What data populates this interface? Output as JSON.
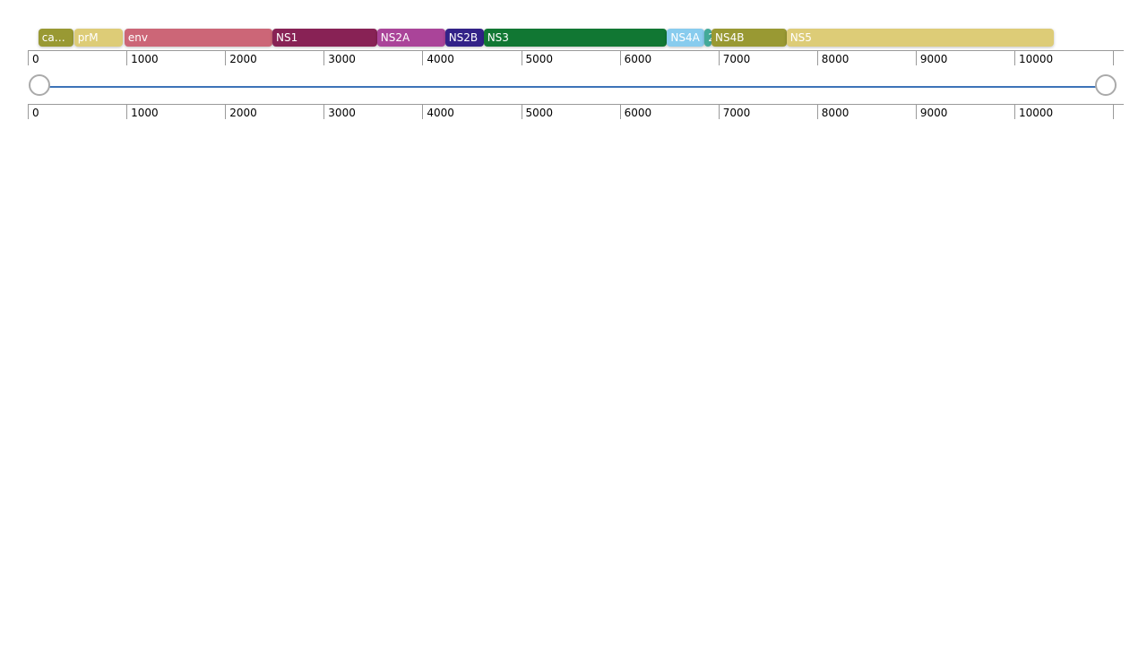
{
  "genome": {
    "length": 11000,
    "features": [
      {
        "id": "capsid",
        "label": "ca…",
        "start": 107,
        "end": 460,
        "color": "#999933",
        "text_color": "#ffffff"
      },
      {
        "id": "prM",
        "label": "prM",
        "start": 470,
        "end": 960,
        "color": "#DDCC77",
        "text_color": "#ffffff"
      },
      {
        "id": "env",
        "label": "env",
        "start": 980,
        "end": 2480,
        "color": "#CC6677",
        "text_color": "#ffffff"
      },
      {
        "id": "NS1",
        "label": "NS1",
        "start": 2480,
        "end": 3540,
        "color": "#882255",
        "text_color": "#ffffff"
      },
      {
        "id": "NS2A",
        "label": "NS2A",
        "start": 3540,
        "end": 4230,
        "color": "#AA4499",
        "text_color": "#ffffff"
      },
      {
        "id": "NS2B",
        "label": "NS2B",
        "start": 4230,
        "end": 4620,
        "color": "#332288",
        "text_color": "#ffffff"
      },
      {
        "id": "NS3",
        "label": "NS3",
        "start": 4620,
        "end": 6480,
        "color": "#117733",
        "text_color": "#ffffff"
      },
      {
        "id": "NS4A",
        "label": "NS4A",
        "start": 6480,
        "end": 6860,
        "color": "#88CCEE",
        "text_color": "#ffffff"
      },
      {
        "id": "2K",
        "label": "2",
        "start": 6860,
        "end": 6930,
        "color": "#44AA99",
        "text_color": "#ffffff"
      },
      {
        "id": "NS4B",
        "label": "NS4B",
        "start": 6930,
        "end": 7690,
        "color": "#999933",
        "text_color": "#ffffff"
      },
      {
        "id": "NS5",
        "label": "NS5",
        "start": 7690,
        "end": 10400,
        "color": "#DDCC77",
        "text_color": "#ffffff"
      }
    ]
  },
  "ruler_top": {
    "ticks": [
      "0",
      "1000",
      "2000",
      "3000",
      "4000",
      "5000",
      "6000",
      "7000",
      "8000",
      "9000",
      "10000"
    ]
  },
  "ruler_bottom": {
    "ticks": [
      "0",
      "1000",
      "2000",
      "3000",
      "4000",
      "5000",
      "6000",
      "7000",
      "8000",
      "9000",
      "10000"
    ]
  },
  "slider": {
    "range_start": 0,
    "range_end": 11000,
    "track_color": "#3d74b8"
  }
}
